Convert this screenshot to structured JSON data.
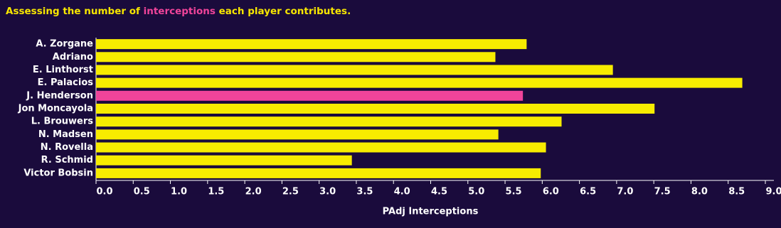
{
  "chart_data": {
    "type": "bar",
    "orientation": "horizontal",
    "title": [
      "Assessing the number of",
      "interceptions",
      "each player contributes."
    ],
    "title_colors": [
      "#f7e600",
      "#f0449a",
      "#f7e600"
    ],
    "xlabel": "PAdj Interceptions",
    "categories": [
      "A. Zorgane",
      "Adriano",
      "E. Linthorst",
      "E. Palacios",
      "J. Henderson",
      "Jon Moncayola",
      "L. Brouwers",
      "N. Madsen",
      "N. Rovella",
      "R. Schmid",
      "Victor Bobsin"
    ],
    "values": [
      5.79,
      5.37,
      6.95,
      8.69,
      5.74,
      7.51,
      6.26,
      5.41,
      6.05,
      3.44,
      5.98
    ],
    "colors": [
      "#f7ec00",
      "#f7ec00",
      "#f7ec00",
      "#f7ec00",
      "#f0449a",
      "#f7ec00",
      "#f7ec00",
      "#f7ec00",
      "#f7ec00",
      "#f7ec00",
      "#f7ec00"
    ],
    "xlim": [
      0,
      9
    ],
    "xticks": [
      {
        "value": 0,
        "label": "0.0"
      },
      0.5,
      {
        "value": 1,
        "label": "1.0"
      },
      1.5,
      {
        "value": 2,
        "label": "2.0"
      },
      2.5,
      {
        "value": 3,
        "label": "3.0"
      },
      3.5,
      {
        "value": 4,
        "label": "4.0"
      },
      4.5,
      {
        "value": 5,
        "label": "5.0"
      },
      5.5,
      {
        "value": 6,
        "label": "6.0"
      },
      6.5,
      {
        "value": 7,
        "label": "7.0"
      },
      7.5,
      {
        "value": 8,
        "label": "8.0"
      },
      8.5,
      {
        "value": 9,
        "label": "9.0"
      }
    ]
  }
}
